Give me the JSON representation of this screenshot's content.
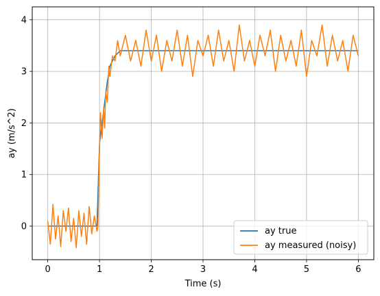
{
  "chart_data": {
    "type": "line",
    "xlabel": "Time (s)",
    "ylabel": "ay (m/s^2)",
    "xlim": [
      -0.3,
      6.3
    ],
    "ylim": [
      -0.65,
      4.25
    ],
    "xticks": [
      0,
      1,
      2,
      3,
      4,
      5,
      6
    ],
    "yticks": [
      0,
      1,
      2,
      3,
      4
    ],
    "grid": true,
    "legend_position": "lower-right",
    "series": [
      {
        "name": "ay true",
        "color": "#1f77b4",
        "x": [
          0,
          0.95,
          1.0,
          1.05,
          1.1,
          1.15,
          1.2,
          1.3,
          1.4,
          1.5,
          6.0
        ],
        "y": [
          0,
          0,
          1.6,
          2.0,
          2.4,
          2.8,
          3.1,
          3.3,
          3.4,
          3.4,
          3.4
        ]
      },
      {
        "name": "ay measured (noisy)",
        "color": "#ff7f0e",
        "x": [
          0,
          0.05,
          0.1,
          0.15,
          0.2,
          0.25,
          0.3,
          0.35,
          0.4,
          0.45,
          0.5,
          0.55,
          0.6,
          0.65,
          0.7,
          0.75,
          0.8,
          0.85,
          0.9,
          0.95,
          0.97,
          1.0,
          1.02,
          1.05,
          1.08,
          1.1,
          1.12,
          1.15,
          1.18,
          1.2,
          1.25,
          1.3,
          1.35,
          1.4,
          1.5,
          1.6,
          1.7,
          1.8,
          1.9,
          2.0,
          2.1,
          2.2,
          2.3,
          2.4,
          2.5,
          2.6,
          2.7,
          2.8,
          2.9,
          3.0,
          3.1,
          3.2,
          3.3,
          3.4,
          3.5,
          3.6,
          3.7,
          3.8,
          3.9,
          4.0,
          4.1,
          4.2,
          4.3,
          4.4,
          4.5,
          4.6,
          4.7,
          4.8,
          4.9,
          5.0,
          5.1,
          5.2,
          5.3,
          5.4,
          5.5,
          5.6,
          5.7,
          5.8,
          5.9,
          6.0
        ],
        "y": [
          0.1,
          -0.35,
          0.42,
          -0.25,
          0.2,
          -0.4,
          0.3,
          -0.1,
          0.35,
          -0.3,
          0.15,
          -0.42,
          0.3,
          -0.2,
          0.25,
          -0.35,
          0.38,
          -0.15,
          0.2,
          -0.1,
          0.0,
          1.5,
          2.2,
          1.7,
          2.3,
          1.9,
          2.6,
          2.4,
          3.1,
          2.9,
          3.3,
          3.2,
          3.6,
          3.3,
          3.7,
          3.2,
          3.6,
          3.1,
          3.8,
          3.2,
          3.7,
          3.0,
          3.6,
          3.2,
          3.8,
          3.1,
          3.7,
          2.9,
          3.6,
          3.3,
          3.7,
          3.1,
          3.8,
          3.2,
          3.6,
          3.0,
          3.9,
          3.2,
          3.6,
          3.1,
          3.7,
          3.3,
          3.8,
          3.0,
          3.7,
          3.2,
          3.6,
          3.1,
          3.8,
          2.9,
          3.6,
          3.3,
          3.9,
          3.1,
          3.7,
          3.2,
          3.6,
          3.0,
          3.7,
          3.3
        ]
      }
    ]
  }
}
